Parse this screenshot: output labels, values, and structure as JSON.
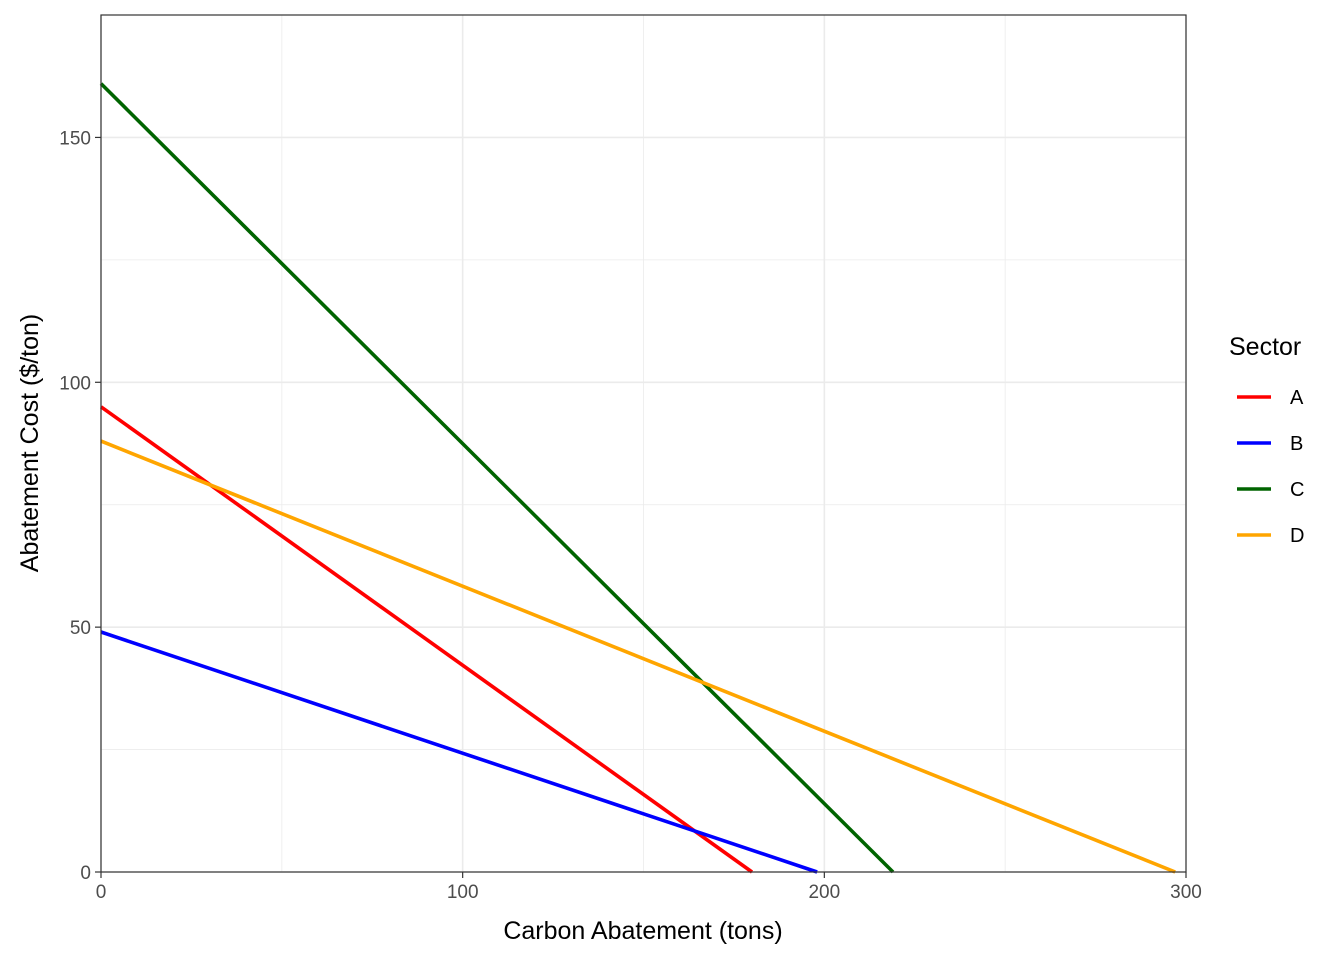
{
  "chart_data": {
    "type": "line",
    "xlabel": "Carbon Abatement (tons)",
    "ylabel": "Abatement Cost ($/ton)",
    "xlim": [
      0,
      300
    ],
    "ylim": [
      0,
      175
    ],
    "x_ticks": [
      0,
      100,
      200,
      300
    ],
    "y_ticks": [
      0,
      50,
      100,
      150
    ],
    "x_tick_labels": [
      "0",
      "100",
      "200",
      "300"
    ],
    "y_tick_labels": [
      "0",
      "50",
      "100",
      "150"
    ],
    "grid": true,
    "legend": {
      "title": "Sector",
      "position": "right"
    },
    "series": [
      {
        "name": "A",
        "color": "#ff0000",
        "x": [
          0,
          180
        ],
        "y": [
          95,
          0
        ]
      },
      {
        "name": "B",
        "color": "#0000ff",
        "x": [
          0,
          198
        ],
        "y": [
          49,
          0
        ]
      },
      {
        "name": "C",
        "color": "#006400",
        "x": [
          0,
          219
        ],
        "y": [
          161,
          0
        ]
      },
      {
        "name": "D",
        "color": "#ffa500",
        "x": [
          0,
          297
        ],
        "y": [
          88,
          0
        ]
      }
    ]
  }
}
